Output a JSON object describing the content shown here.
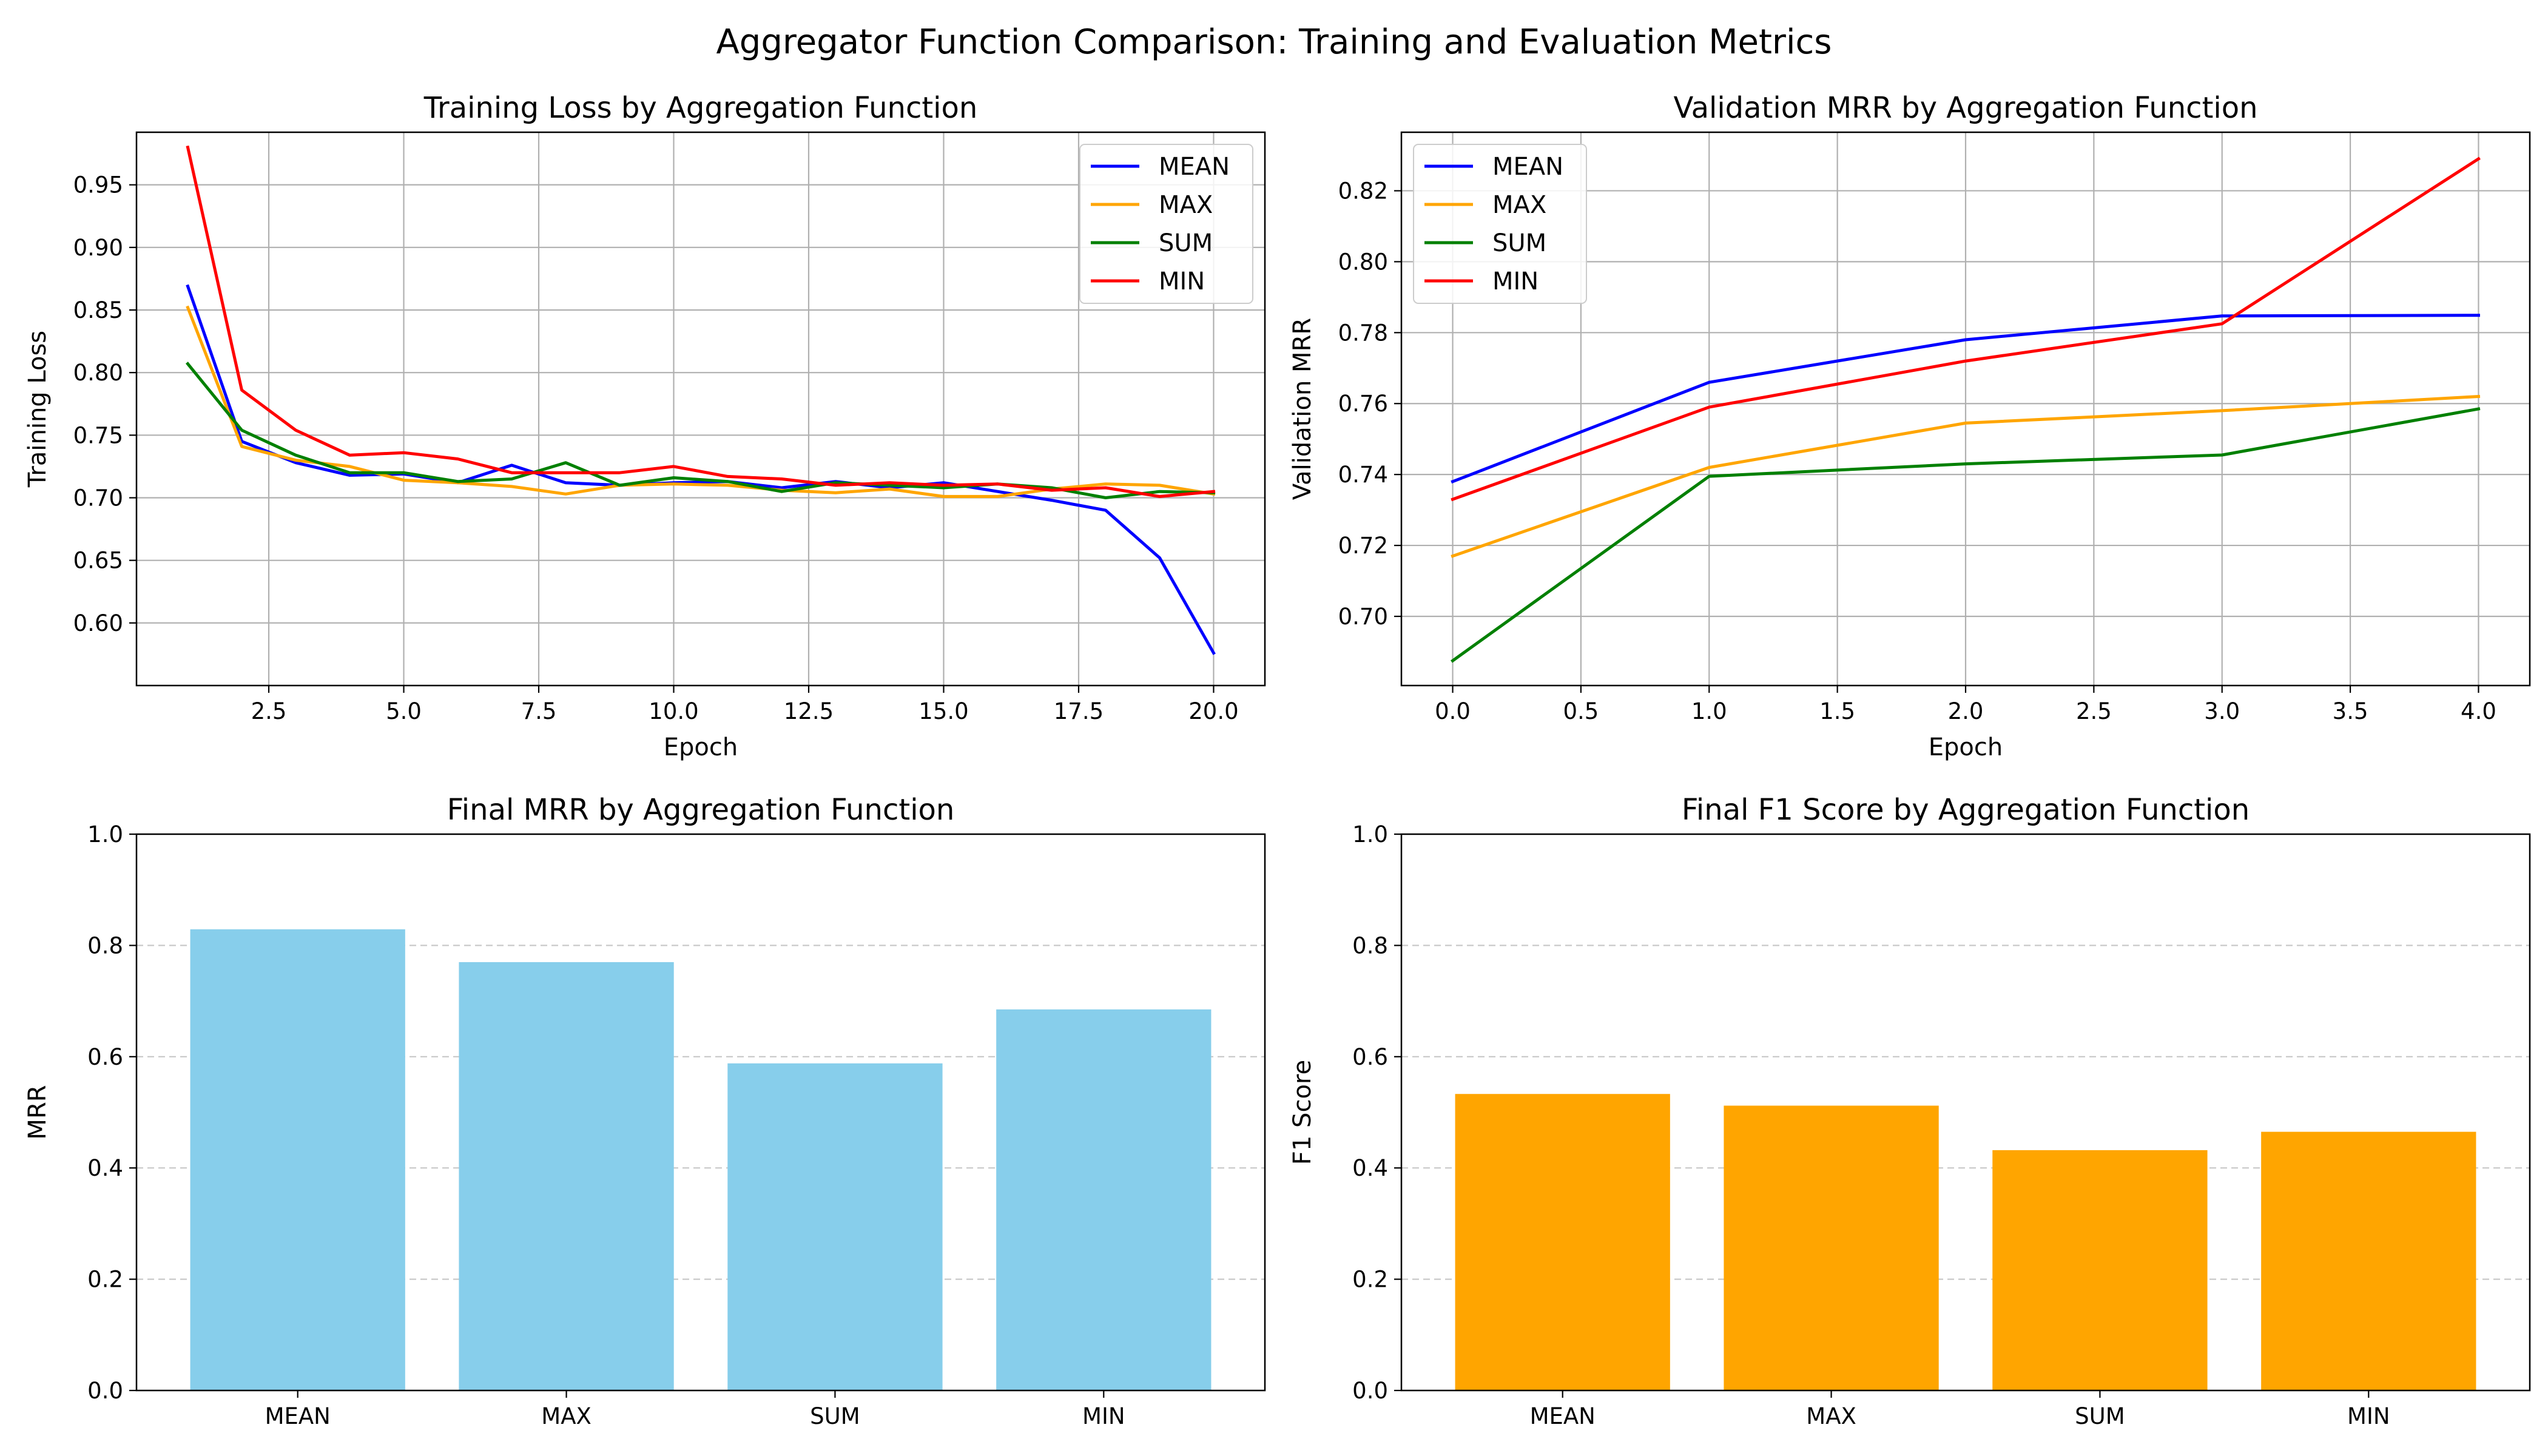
{
  "suptitle": "Aggregator Function Comparison: Training and Evaluation Metrics",
  "chart_data": [
    {
      "type": "line",
      "title": "Training Loss by Aggregation Function",
      "xlabel": "Epoch",
      "ylabel": "Training Loss",
      "xlim": [
        0.05,
        20.95
      ],
      "ylim": [
        0.55,
        0.992
      ],
      "xticks": [
        2.5,
        5.0,
        7.5,
        10.0,
        12.5,
        15.0,
        17.5,
        20.0
      ],
      "xtick_labels": [
        "2.5",
        "5.0",
        "7.5",
        "10.0",
        "12.5",
        "15.0",
        "17.5",
        "20.0"
      ],
      "yticks": [
        0.6,
        0.65,
        0.7,
        0.75,
        0.8,
        0.85,
        0.9,
        0.95
      ],
      "ytick_labels": [
        "0.60",
        "0.65",
        "0.70",
        "0.75",
        "0.80",
        "0.85",
        "0.90",
        "0.95"
      ],
      "grid": true,
      "legend": "upper right",
      "x": [
        1,
        2,
        3,
        4,
        5,
        6,
        7,
        8,
        9,
        10,
        11,
        12,
        13,
        14,
        15,
        16,
        17,
        18,
        19,
        20
      ],
      "series": [
        {
          "name": "MEAN",
          "color": "#0000ff",
          "values": [
            0.869,
            0.745,
            0.728,
            0.718,
            0.719,
            0.712,
            0.726,
            0.712,
            0.71,
            0.712,
            0.713,
            0.708,
            0.713,
            0.708,
            0.712,
            0.705,
            0.698,
            0.69,
            0.652,
            0.576
          ]
        },
        {
          "name": "MAX",
          "color": "#ffa500",
          "values": [
            0.852,
            0.741,
            0.73,
            0.725,
            0.714,
            0.712,
            0.709,
            0.703,
            0.71,
            0.711,
            0.71,
            0.706,
            0.704,
            0.707,
            0.701,
            0.701,
            0.707,
            0.711,
            0.71,
            0.703
          ]
        },
        {
          "name": "SUM",
          "color": "#008000",
          "values": [
            0.807,
            0.754,
            0.734,
            0.72,
            0.72,
            0.713,
            0.715,
            0.728,
            0.71,
            0.716,
            0.713,
            0.705,
            0.712,
            0.71,
            0.708,
            0.711,
            0.708,
            0.7,
            0.705,
            0.704
          ]
        },
        {
          "name": "MIN",
          "color": "#ff0000",
          "values": [
            0.98,
            0.786,
            0.754,
            0.734,
            0.736,
            0.731,
            0.72,
            0.72,
            0.72,
            0.725,
            0.717,
            0.715,
            0.71,
            0.712,
            0.71,
            0.711,
            0.706,
            0.708,
            0.701,
            0.705
          ]
        }
      ]
    },
    {
      "type": "line",
      "title": "Validation MRR by Aggregation Function",
      "xlabel": "Epoch",
      "ylabel": "Validation MRR",
      "xlim": [
        -0.2,
        4.2
      ],
      "ylim": [
        0.6805,
        0.8365
      ],
      "xticks": [
        0.0,
        0.5,
        1.0,
        1.5,
        2.0,
        2.5,
        3.0,
        3.5,
        4.0
      ],
      "xtick_labels": [
        "0.0",
        "0.5",
        "1.0",
        "1.5",
        "2.0",
        "2.5",
        "3.0",
        "3.5",
        "4.0"
      ],
      "yticks": [
        0.7,
        0.72,
        0.74,
        0.76,
        0.78,
        0.8,
        0.82
      ],
      "ytick_labels": [
        "0.70",
        "0.72",
        "0.74",
        "0.76",
        "0.78",
        "0.80",
        "0.82"
      ],
      "grid": true,
      "legend": "upper left",
      "x": [
        0,
        1,
        2,
        3,
        4
      ],
      "series": [
        {
          "name": "MEAN",
          "color": "#0000ff",
          "values": [
            0.738,
            0.766,
            0.778,
            0.7847,
            0.7849
          ]
        },
        {
          "name": "MAX",
          "color": "#ffa500",
          "values": [
            0.717,
            0.742,
            0.7545,
            0.758,
            0.762
          ]
        },
        {
          "name": "SUM",
          "color": "#008000",
          "values": [
            0.6875,
            0.7395,
            0.743,
            0.7455,
            0.7585
          ]
        },
        {
          "name": "MIN",
          "color": "#ff0000",
          "values": [
            0.733,
            0.759,
            0.772,
            0.7825,
            0.829
          ]
        }
      ]
    },
    {
      "type": "bar",
      "title": "Final MRR by Aggregation Function",
      "xlabel": "",
      "ylabel": "MRR",
      "ylim": [
        0,
        1.0
      ],
      "yticks": [
        0.0,
        0.2,
        0.4,
        0.6,
        0.8,
        1.0
      ],
      "ytick_labels": [
        "0.0",
        "0.2",
        "0.4",
        "0.6",
        "0.8",
        "1.0"
      ],
      "grid": "y-dashed",
      "color": "#87ceeb",
      "categories": [
        "MEAN",
        "MAX",
        "SUM",
        "MIN"
      ],
      "values": [
        0.829,
        0.77,
        0.588,
        0.685
      ]
    },
    {
      "type": "bar",
      "title": "Final F1 Score by Aggregation Function",
      "xlabel": "",
      "ylabel": "F1 Score",
      "ylim": [
        0,
        1.0
      ],
      "yticks": [
        0.0,
        0.2,
        0.4,
        0.6,
        0.8,
        1.0
      ],
      "ytick_labels": [
        "0.0",
        "0.2",
        "0.4",
        "0.6",
        "0.8",
        "1.0"
      ],
      "grid": "y-dashed",
      "color": "#ffa500",
      "categories": [
        "MEAN",
        "MAX",
        "SUM",
        "MIN"
      ],
      "values": [
        0.533,
        0.512,
        0.432,
        0.465
      ]
    }
  ]
}
